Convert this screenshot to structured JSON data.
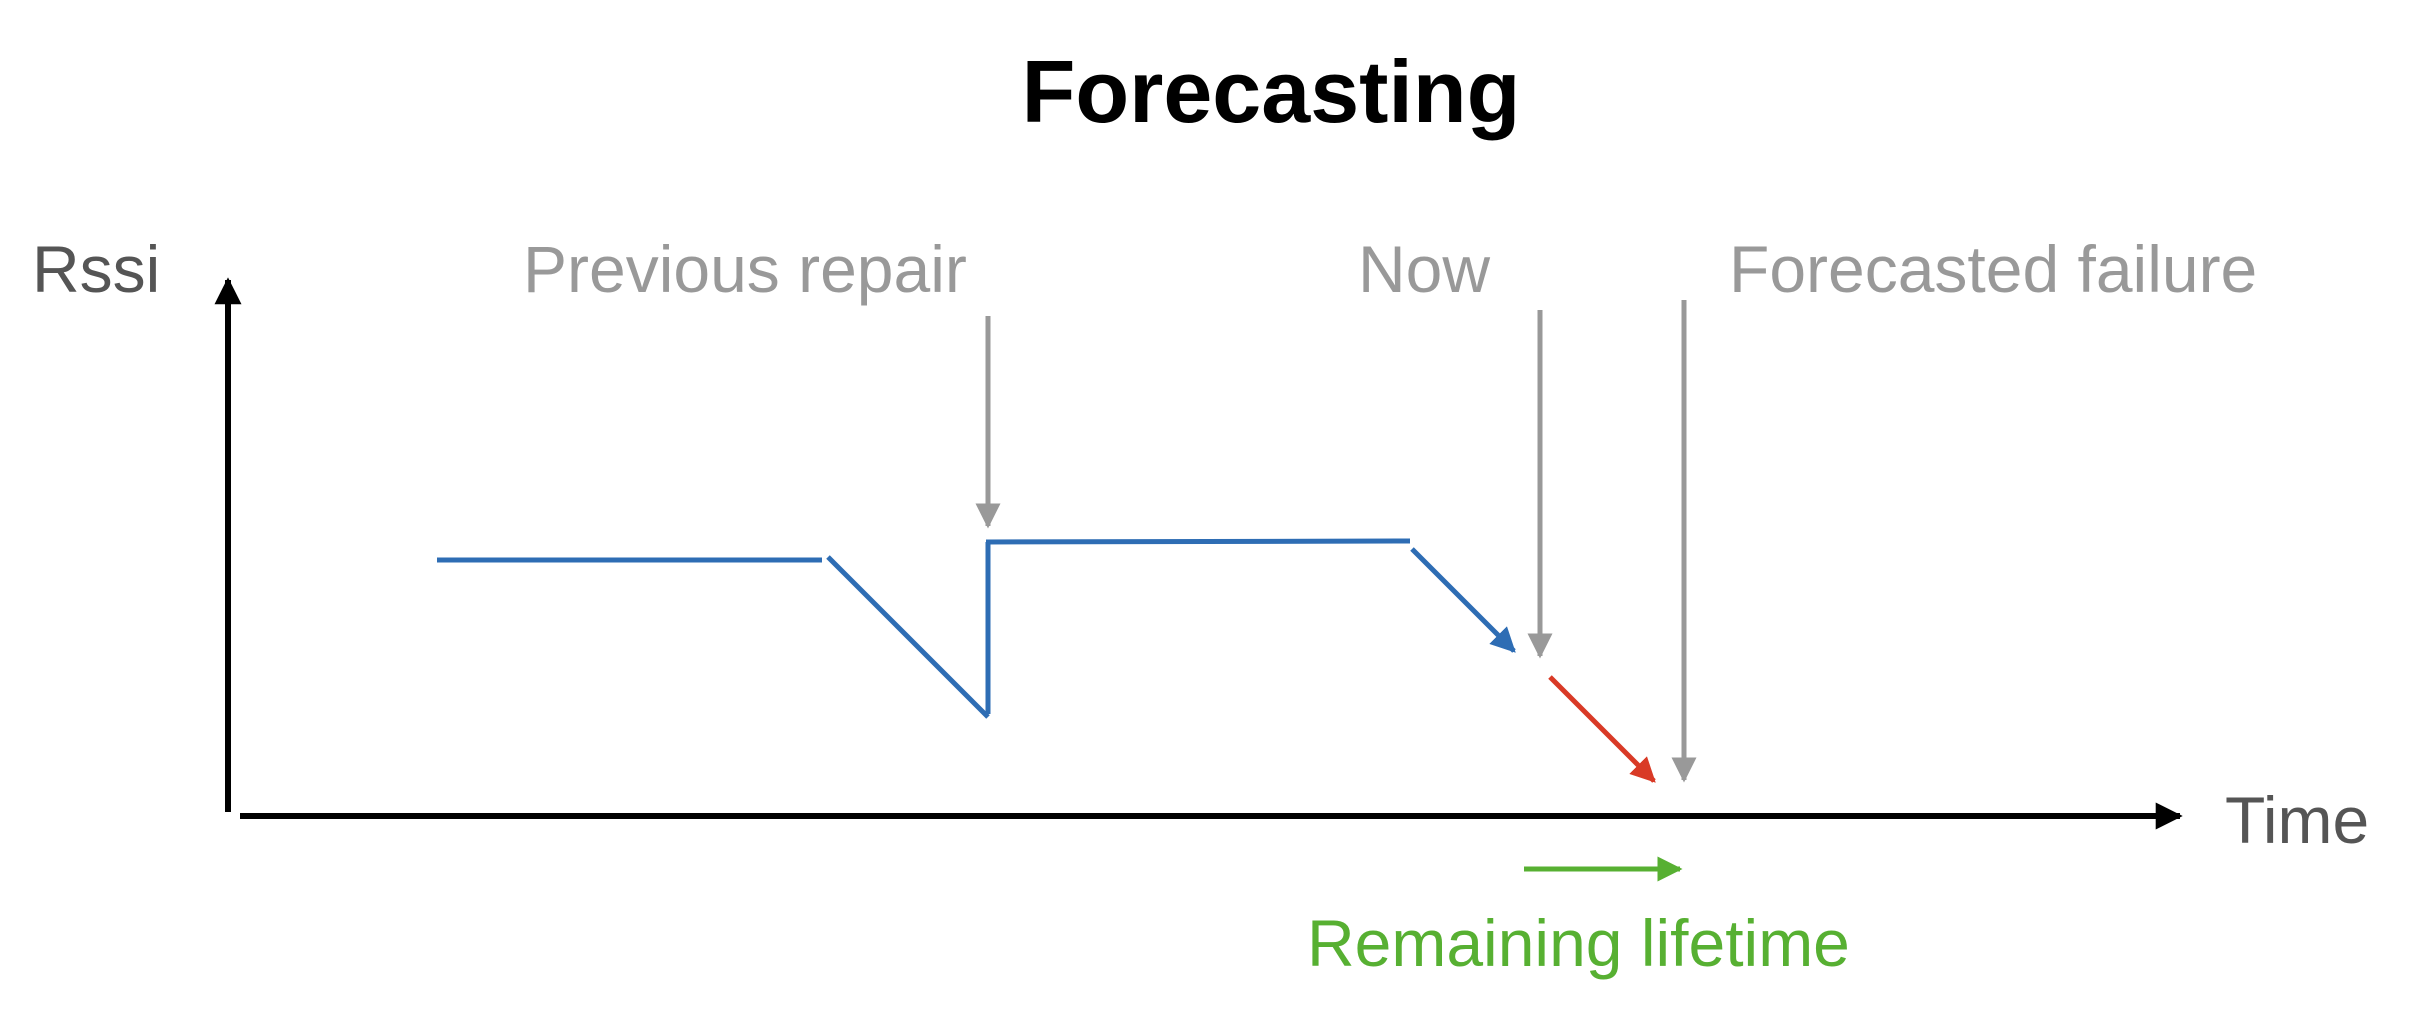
{
  "title": "Forecasting",
  "y_axis_label": "Rssi",
  "x_axis_label": "Time",
  "markers": {
    "previous_repair": "Previous repair",
    "now": "Now",
    "forecasted_failure": "Forecasted failure"
  },
  "remaining_lifetime": "Remaining lifetime",
  "colors": {
    "title": "#000000",
    "axis": "#000000",
    "axis_label": "#555555",
    "marker": "#999999",
    "signal": "#2e6db4",
    "forecast": "#d93a26",
    "lifetime": "#57b032"
  }
}
